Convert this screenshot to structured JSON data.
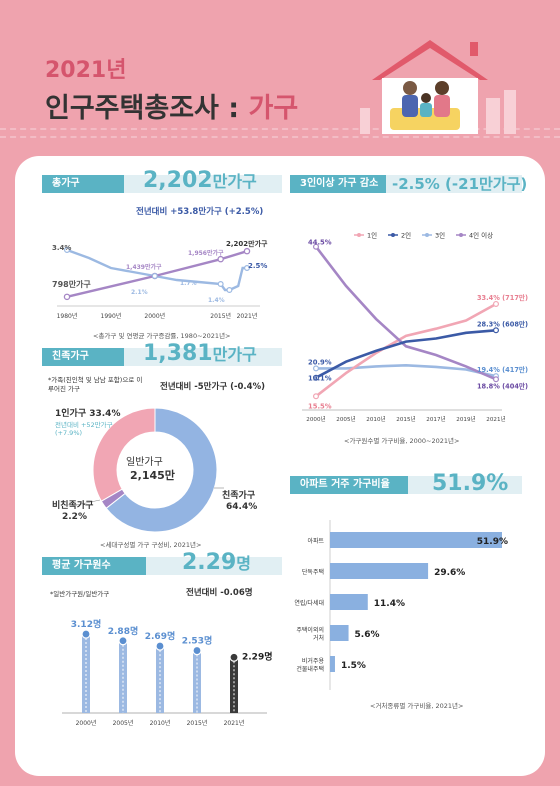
{
  "header": {
    "year": "2021년",
    "title_main": "인구주택총조사",
    "title_sep": " : ",
    "title_accent": "가구"
  },
  "colors": {
    "accent": "#5ab3c4",
    "pink": "#efa3ae",
    "purple": "#a586c5",
    "blue": "#3b5aa6",
    "lightblue": "#9cb9e2"
  },
  "s1": {
    "tag": "총가구",
    "big_num": "2,202",
    "big_unit": "만가구",
    "sub": "전년대비 +53.8만가구 (+2.5%)",
    "labels": {
      "total_start": "798만가구",
      "rate_start": "3.4%",
      "total_2000": "1,439만가구",
      "rate_2000": "2.1%",
      "total_2015": "1,956만가구",
      "rate_2015a": "1.7%",
      "rate_2015b": "1.4%",
      "total_end": "2,202만가구",
      "rate_end": "2.5%"
    },
    "caption": "<총가구 및 연평균 가구증감률, 1980~2021년>"
  },
  "s2": {
    "tag": "친족가구",
    "big_num": "1,381",
    "big_unit": "만가구",
    "note": "*가족(친인척 및 남남 포함)으로 이루어진 가구",
    "sub": "전년대비 -5만가구 (-0.4%)",
    "one_person": "1인가구 33.4%",
    "one_person_sub1": "전년대비 +52만가구",
    "one_person_sub2": "(+7.9%)",
    "non_kin": "비친족가구",
    "non_kin_pct": "2.2%",
    "kin": "친족가구",
    "kin_pct": "64.4%",
    "center1": "일반가구",
    "center2": "2,145만",
    "caption": "<세대구성별 가구 구성비, 2021년>"
  },
  "s3": {
    "tag": "평균 가구원수",
    "big_num": "2.29",
    "big_unit": "명",
    "note": "*일반가구원/일반가구",
    "sub": "전년대비 -0.06명",
    "caption": ""
  },
  "s4": {
    "tag": "3인이상 가구 감소",
    "big": "-2.5% (-21만가구)",
    "caption": "<가구원수별 가구비율, 2000~2021년>"
  },
  "s5": {
    "tag": "아파트 거주 가구비율",
    "big": "51.9%",
    "caption": "<거처종류별 가구비율, 2021년>"
  },
  "chart_data": [
    {
      "type": "line",
      "title": "총가구 및 연평균 가구증감률, 1980~2021년",
      "x": [
        "1980년",
        "1990년",
        "2000년",
        "2015년",
        "2021년"
      ],
      "series": [
        {
          "name": "총가구(만가구)",
          "points": [
            [
              1980,
              798
            ],
            [
              2000,
              1439
            ],
            [
              2015,
              1956
            ],
            [
              2021,
              2202
            ]
          ]
        },
        {
          "name": "연평균 가구증감률(%)",
          "points": [
            [
              1980,
              3.4
            ],
            [
              1985,
              3.0
            ],
            [
              1990,
              2.5
            ],
            [
              1995,
              2.3
            ],
            [
              2000,
              2.1
            ],
            [
              2005,
              1.9
            ],
            [
              2010,
              1.8
            ],
            [
              2015,
              1.7
            ],
            [
              2016,
              1.4
            ],
            [
              2017,
              1.4
            ],
            [
              2018,
              1.5
            ],
            [
              2019,
              1.6
            ],
            [
              2020,
              2.5
            ],
            [
              2021,
              2.5
            ]
          ]
        }
      ]
    },
    {
      "type": "pie",
      "title": "세대구성별 가구 구성비, 2021년",
      "labels": [
        "1인가구",
        "비친족가구",
        "친족가구"
      ],
      "values": [
        33.4,
        2.2,
        64.4
      ]
    },
    {
      "type": "bar",
      "title": "평균 가구원수",
      "categories": [
        "2000년",
        "2005년",
        "2010년",
        "2015년",
        "2021년"
      ],
      "values": [
        3.12,
        2.88,
        2.69,
        2.53,
        2.29
      ],
      "value_labels": [
        "3.12명",
        "2.88명",
        "2.69명",
        "2.53명",
        "2.29명"
      ]
    },
    {
      "type": "line",
      "title": "가구원수별 가구비율, 2000~2021년",
      "x": [
        "2000년",
        "2005년",
        "2010년",
        "2015년",
        "2017년",
        "2019년",
        "2021년"
      ],
      "series": [
        {
          "name": "1인",
          "values": [
            15.5,
            20.0,
            23.9,
            27.2,
            28.6,
            30.2,
            33.4
          ]
        },
        {
          "name": "2인",
          "values": [
            19.1,
            22.2,
            24.3,
            26.1,
            26.7,
            27.8,
            28.3
          ]
        },
        {
          "name": "3인",
          "values": [
            20.9,
            20.9,
            21.3,
            21.5,
            21.2,
            20.7,
            19.4
          ]
        },
        {
          "name": "4인 이상",
          "values": [
            44.5,
            36.9,
            30.5,
            25.2,
            23.5,
            21.3,
            18.8
          ]
        }
      ],
      "end_labels": [
        "33.4% (717만)",
        "28.3% (608만)",
        "19.4% (417만)",
        "18.8% (404만)"
      ],
      "start_labels": [
        "15.5%",
        "19.1%",
        "20.9%",
        "44.5%"
      ]
    },
    {
      "type": "bar",
      "orientation": "horizontal",
      "title": "거처종류별 가구비율, 2021년",
      "categories": [
        "아파트",
        "단독주택",
        "연립/다세대",
        "주택이외의 거처",
        "비거주용 건물내주택"
      ],
      "values": [
        51.9,
        29.6,
        11.4,
        5.6,
        1.5
      ]
    }
  ]
}
